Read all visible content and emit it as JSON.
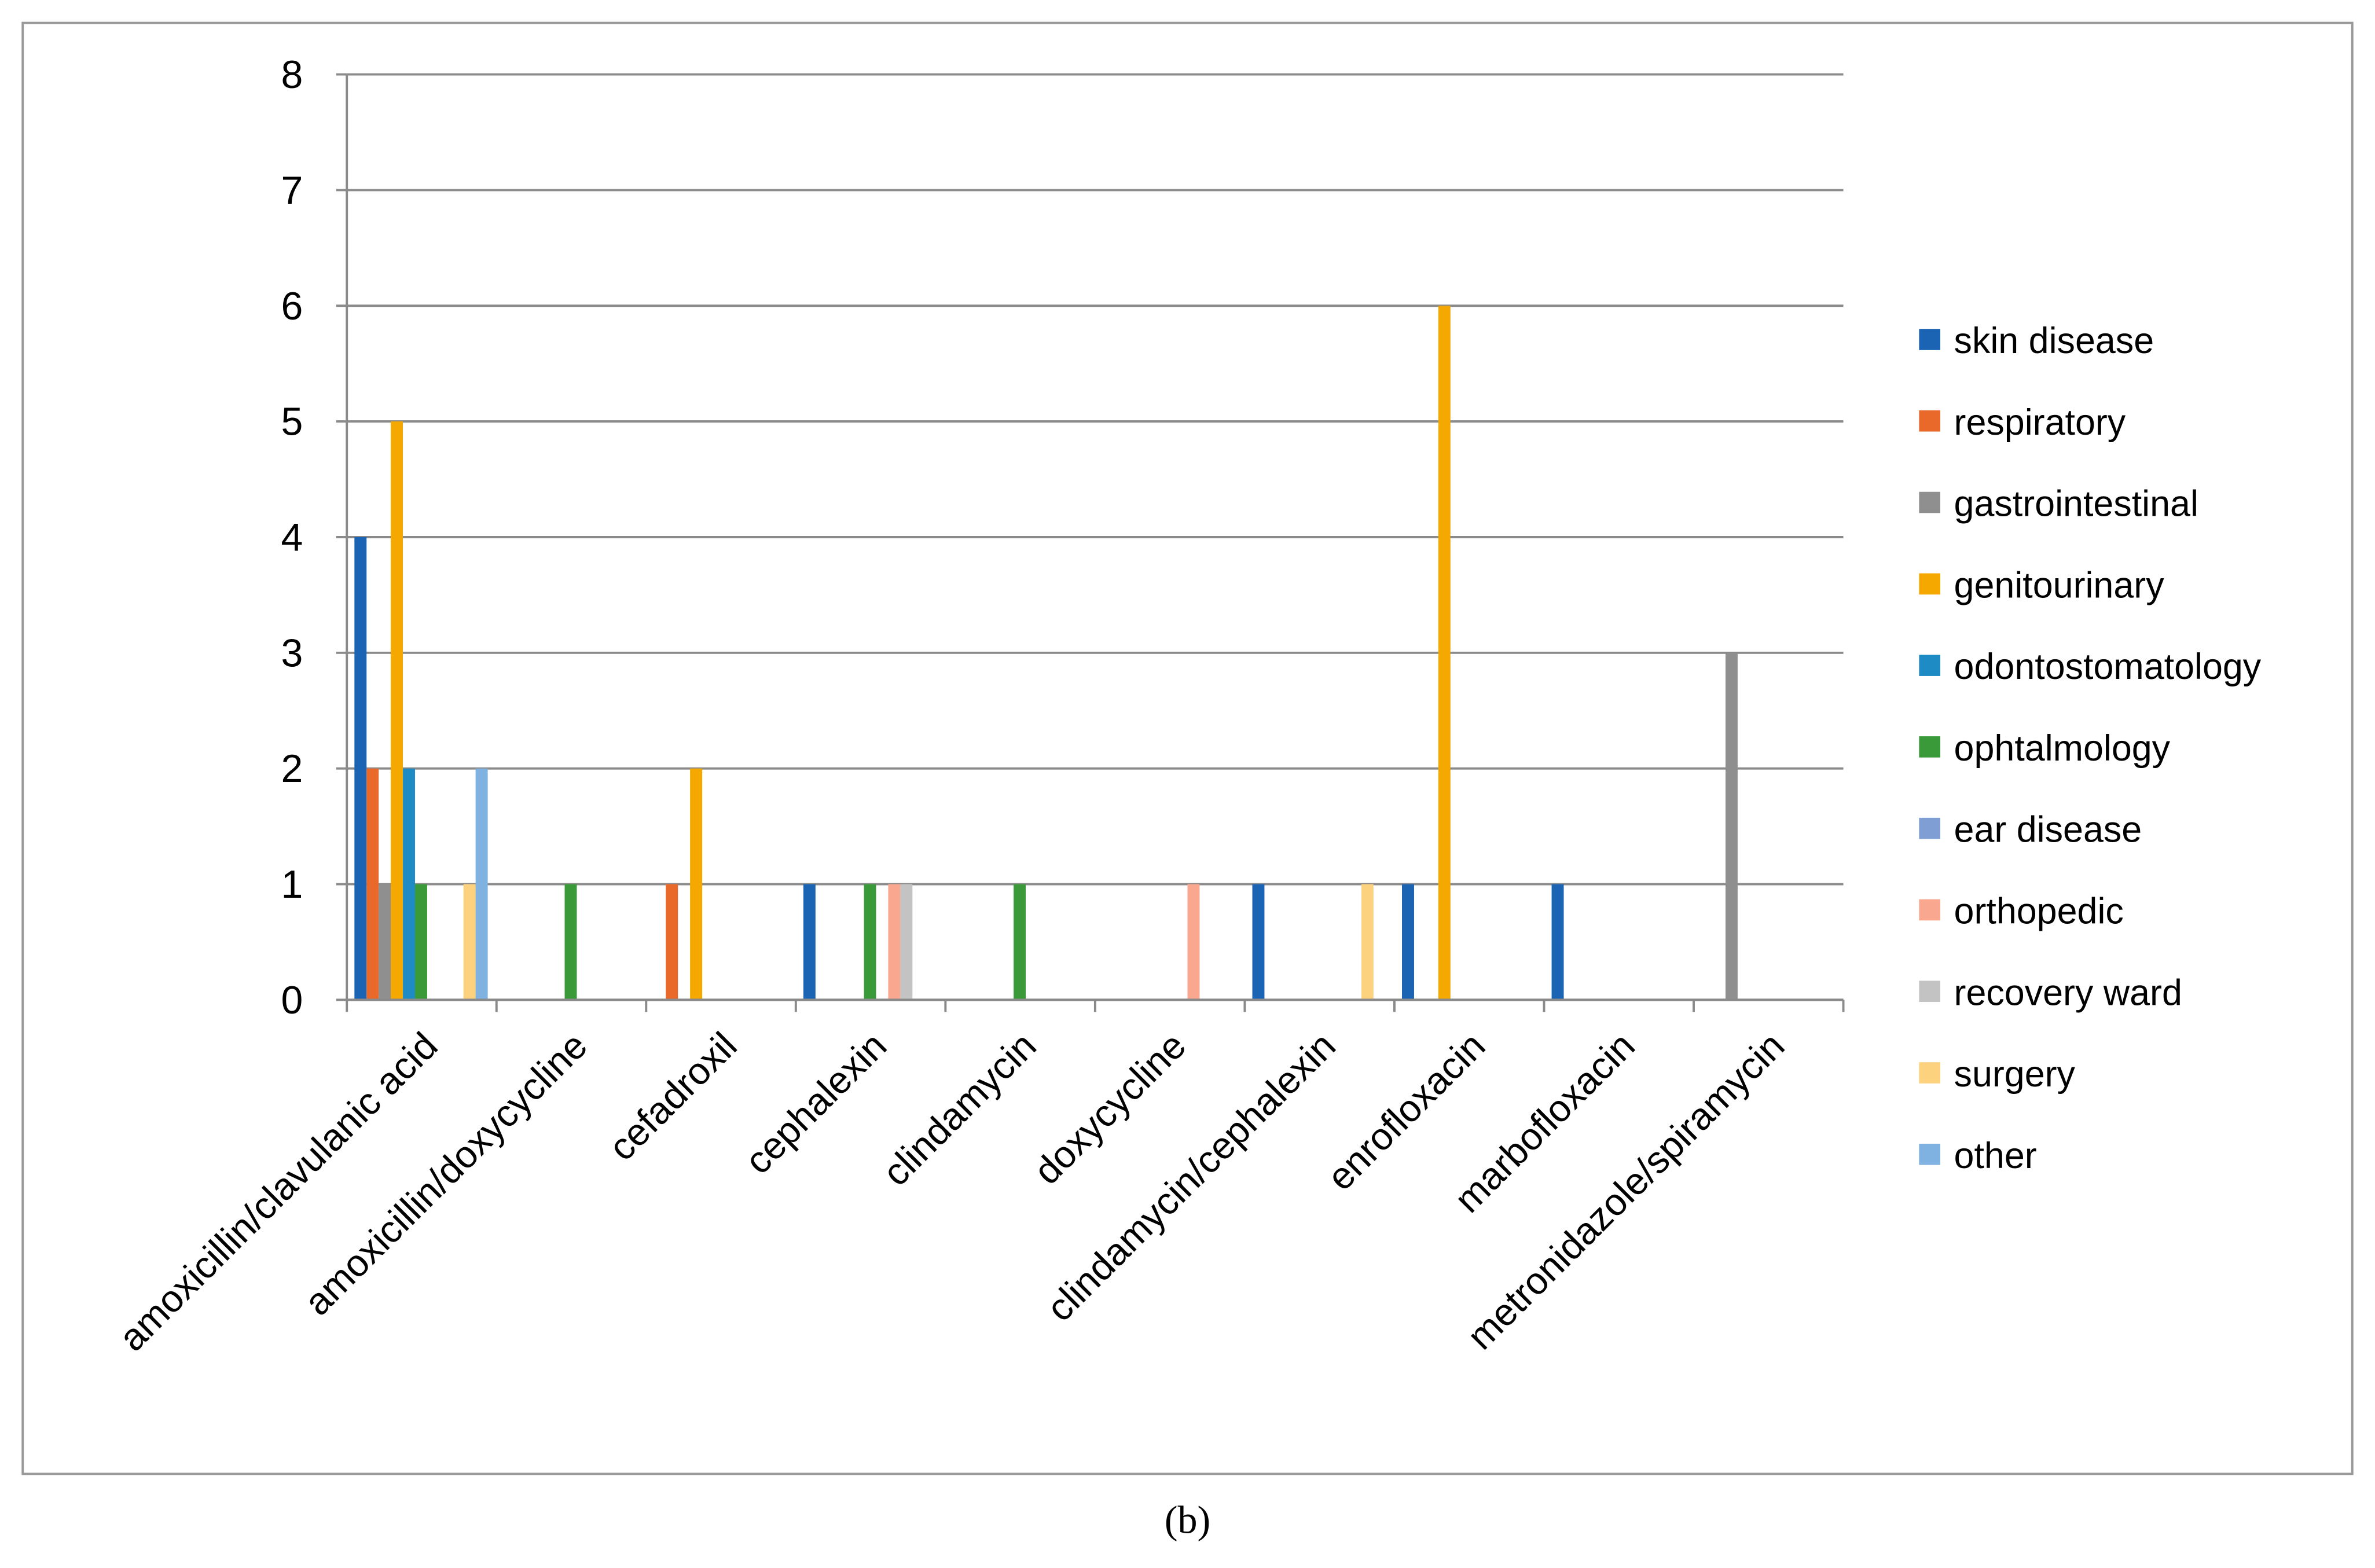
{
  "chart_data": {
    "type": "bar",
    "caption": "(b)",
    "categories": [
      "amoxicillin/clavulanic acid",
      "amoxicillin/doxycycline",
      "cefadroxil",
      "cephalexin",
      "clindamycin",
      "doxycycline",
      "clindamycin/cephalexin",
      "enrofloxacin",
      "marbofloxacin",
      "metronidazole/spiramycin"
    ],
    "series": [
      {
        "name": "skin disease",
        "color": "#1b63b3",
        "values": [
          4,
          0,
          0,
          1,
          0,
          0,
          1,
          1,
          1,
          0
        ]
      },
      {
        "name": "respiratory",
        "color": "#e9692b",
        "values": [
          2,
          0,
          1,
          0,
          0,
          0,
          0,
          0,
          0,
          0
        ]
      },
      {
        "name": "gastrointestinal",
        "color": "#8f8f8f",
        "values": [
          1,
          0,
          0,
          0,
          0,
          0,
          0,
          0,
          0,
          3
        ]
      },
      {
        "name": "genitourinary",
        "color": "#f5a800",
        "values": [
          5,
          0,
          2,
          0,
          0,
          0,
          0,
          6,
          0,
          0
        ]
      },
      {
        "name": "odontostomatology",
        "color": "#1f8bc4",
        "values": [
          2,
          0,
          0,
          0,
          0,
          0,
          0,
          0,
          0,
          0
        ]
      },
      {
        "name": "ophtalmology",
        "color": "#3a9a3a",
        "values": [
          1,
          1,
          0,
          1,
          1,
          0,
          0,
          0,
          0,
          0
        ]
      },
      {
        "name": "ear disease",
        "color": "#7f9fd4",
        "values": [
          0,
          0,
          0,
          0,
          0,
          0,
          0,
          0,
          0,
          0
        ]
      },
      {
        "name": "orthopedic",
        "color": "#f9a78e",
        "values": [
          0,
          0,
          0,
          1,
          0,
          1,
          0,
          0,
          0,
          0
        ]
      },
      {
        "name": "recovery ward",
        "color": "#c3c3c3",
        "values": [
          0,
          0,
          0,
          1,
          0,
          0,
          0,
          0,
          0,
          0
        ]
      },
      {
        "name": "surgery",
        "color": "#fcd27f",
        "values": [
          1,
          0,
          0,
          0,
          0,
          0,
          1,
          0,
          0,
          0
        ]
      },
      {
        "name": "other",
        "color": "#7fb2e0",
        "values": [
          2,
          0,
          0,
          0,
          0,
          0,
          0,
          0,
          0,
          0
        ]
      }
    ],
    "ylim": [
      0,
      8
    ],
    "yticks": [
      0,
      1,
      2,
      3,
      4,
      5,
      6,
      7,
      8
    ],
    "grid": true,
    "legend": "right"
  }
}
